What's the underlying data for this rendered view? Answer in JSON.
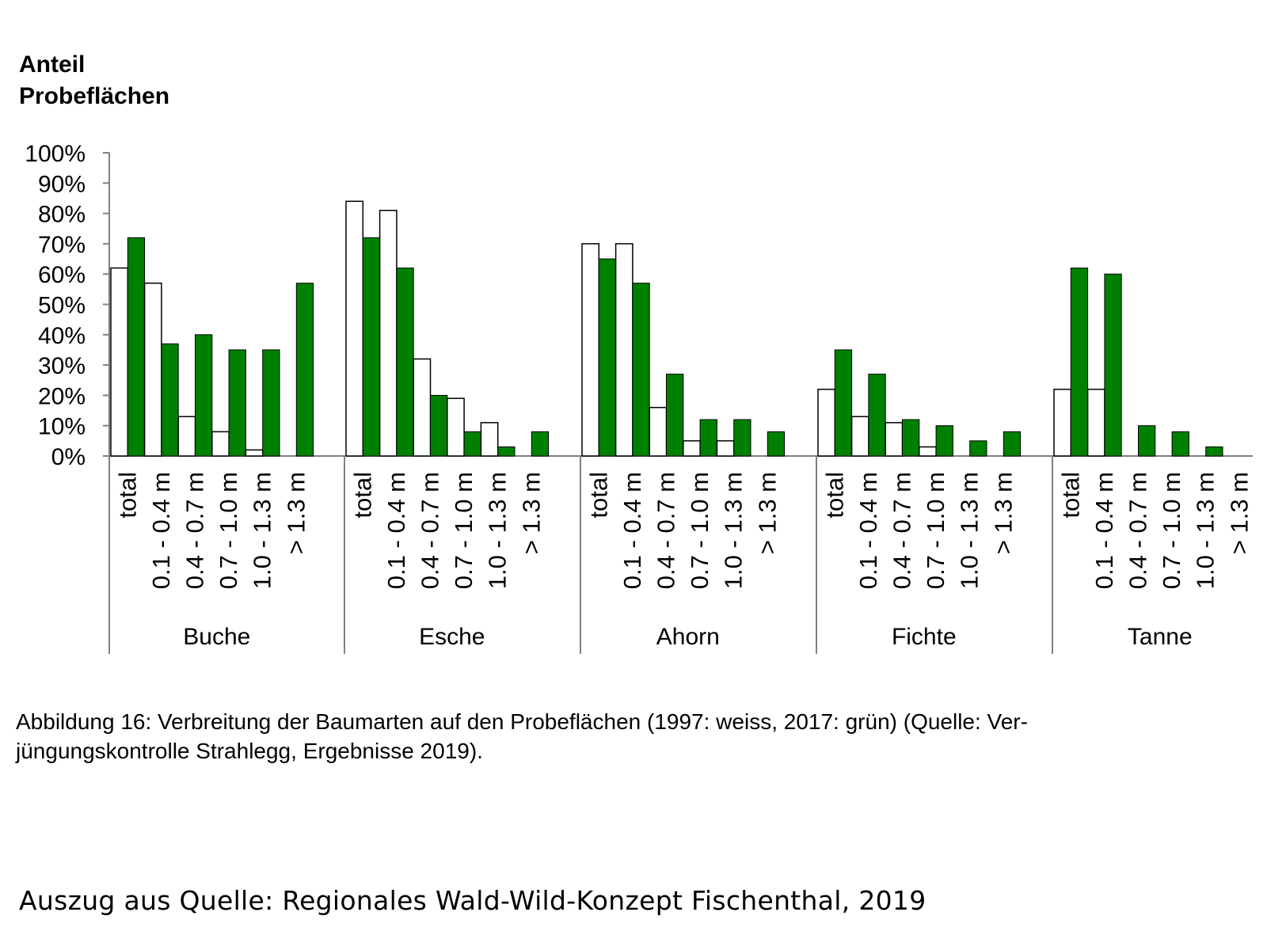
{
  "chart_data": {
    "type": "bar",
    "ylabel": "Anteil\nProbeflächen",
    "ylabel_lines": [
      "Anteil",
      "Probeflächen"
    ],
    "ylim": [
      0,
      100
    ],
    "yticks": [
      "0%",
      "10%",
      "20%",
      "30%",
      "40%",
      "50%",
      "60%",
      "70%",
      "80%",
      "90%",
      "100%"
    ],
    "categories": [
      "total",
      "0.1 - 0.4 m",
      "0.4 - 0.7 m",
      "0.7 - 1.0 m",
      "1.0 - 1.3 m",
      "> 1.3 m"
    ],
    "groups": [
      "Buche",
      "Esche",
      "Ahorn",
      "Fichte",
      "Tanne"
    ],
    "series": [
      {
        "name": "1997",
        "color": "#ffffff",
        "values": {
          "Buche": [
            62,
            57,
            13,
            8,
            2,
            0
          ],
          "Esche": [
            84,
            81,
            32,
            19,
            11,
            0
          ],
          "Ahorn": [
            70,
            70,
            16,
            5,
            5,
            0
          ],
          "Fichte": [
            22,
            13,
            11,
            3,
            0,
            0
          ],
          "Tanne": [
            22,
            22,
            0,
            0,
            0,
            0
          ]
        }
      },
      {
        "name": "2017",
        "color": "#008000",
        "values": {
          "Buche": [
            72,
            37,
            40,
            35,
            35,
            57
          ],
          "Esche": [
            72,
            62,
            20,
            8,
            3,
            8
          ],
          "Ahorn": [
            65,
            57,
            27,
            12,
            12,
            8
          ],
          "Fichte": [
            35,
            27,
            12,
            10,
            5,
            8
          ],
          "Tanne": [
            62,
            60,
            10,
            8,
            3,
            0
          ]
        }
      }
    ]
  },
  "caption": "Abbildung 16: Verbreitung der Baumarten auf den Probeflächen (1997: weiss, 2017: grün) (Quelle: Verjüngungskontrolle Strahlegg, Ergebnisse 2019).",
  "caption_lines": [
    "Abbildung 16: Verbreitung der Baumarten auf den Probeflächen (1997: weiss, 2017: grün) (Quelle: Ver-",
    "jüngungskontrolle Strahlegg, Ergebnisse 2019)."
  ],
  "source": "Auszug aus Quelle: Regionales Wald-Wild-Konzept Fischenthal, 2019"
}
